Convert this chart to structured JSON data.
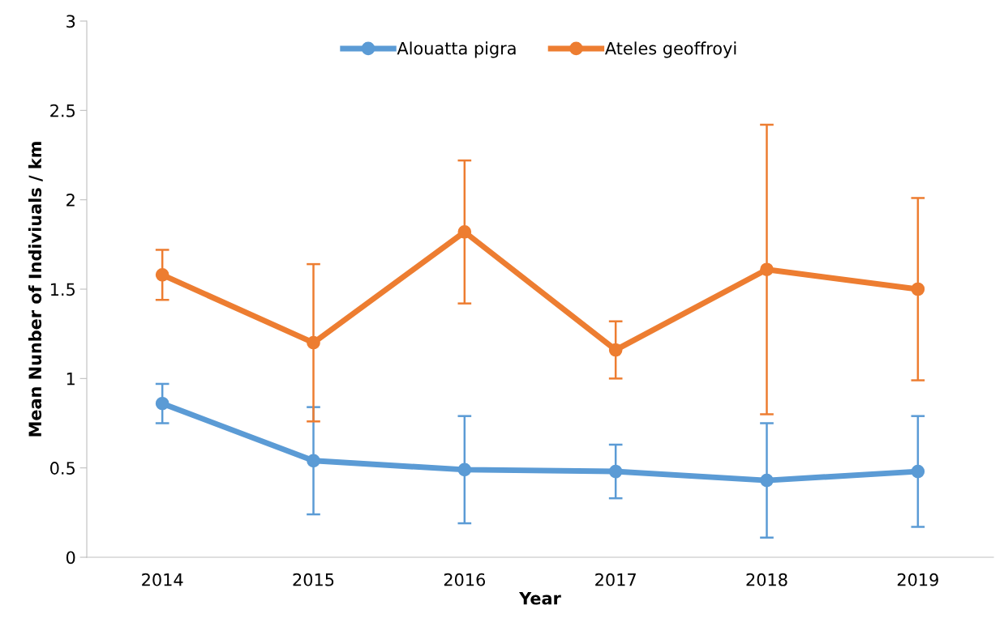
{
  "chart_data": {
    "type": "line",
    "xlabel": "Year",
    "ylabel": "Mean Nunber of Indiviuals / km",
    "categories": [
      "2014",
      "2015",
      "2016",
      "2017",
      "2018",
      "2019"
    ],
    "series": [
      {
        "name": "Alouatta pigra",
        "color": "#5b9bd5",
        "values": [
          0.86,
          0.54,
          0.49,
          0.48,
          0.43,
          0.48
        ],
        "errors": [
          0.11,
          0.3,
          0.3,
          0.15,
          0.32,
          0.31
        ]
      },
      {
        "name": "Ateles geoffroyi",
        "color": "#ed7d31",
        "values": [
          1.58,
          1.2,
          1.82,
          1.16,
          1.61,
          1.5
        ],
        "errors": [
          0.14,
          0.44,
          0.4,
          0.16,
          0.81,
          0.51
        ]
      }
    ],
    "ylim": [
      0,
      3
    ],
    "yticks": [
      0,
      0.5,
      1,
      1.5,
      2,
      2.5,
      3
    ],
    "grid": false,
    "legend": "top",
    "marker": "circle",
    "line_style": "solid"
  }
}
